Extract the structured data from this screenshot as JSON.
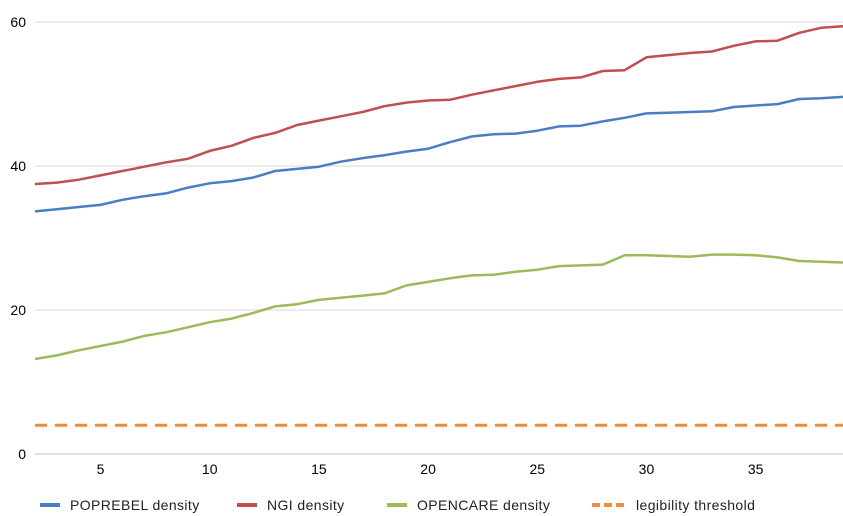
{
  "chart_data": {
    "type": "line",
    "x": [
      2,
      3,
      4,
      5,
      6,
      7,
      8,
      9,
      10,
      11,
      12,
      13,
      14,
      15,
      16,
      17,
      18,
      19,
      20,
      21,
      22,
      23,
      24,
      25,
      26,
      27,
      28,
      29,
      30,
      31,
      32,
      33,
      34,
      35,
      36,
      37,
      38,
      39
    ],
    "xticks": [
      "5",
      "10",
      "15",
      "20",
      "25",
      "30",
      "35"
    ],
    "xtick_values": [
      5,
      10,
      15,
      20,
      25,
      30,
      35
    ],
    "yticks": [
      "0",
      "20",
      "40",
      "60"
    ],
    "ytick_values": [
      0,
      20,
      40,
      60
    ],
    "xlim": [
      2,
      39
    ],
    "ylim": [
      0,
      60
    ],
    "title": "",
    "xlabel": "",
    "ylabel": "",
    "grid": "horizontal",
    "legend_position": "bottom",
    "series": [
      {
        "name": "POPREBEL density",
        "color": "#4a7ec4",
        "style": "solid",
        "values": [
          33.7,
          34.0,
          34.3,
          34.6,
          35.3,
          35.8,
          36.2,
          37.0,
          37.6,
          37.9,
          38.4,
          39.3,
          39.6,
          39.9,
          40.6,
          41.1,
          41.5,
          42.0,
          42.4,
          43.3,
          44.1,
          44.4,
          44.5,
          44.9,
          45.5,
          45.6,
          46.2,
          46.7,
          47.3,
          47.4,
          47.5,
          47.6,
          48.2,
          48.4,
          48.6,
          49.3,
          49.4,
          49.6
        ]
      },
      {
        "name": "NGI density",
        "color": "#c0504d",
        "style": "solid",
        "values": [
          37.5,
          37.7,
          38.1,
          38.7,
          39.3,
          39.9,
          40.5,
          41.0,
          42.1,
          42.8,
          43.9,
          44.6,
          45.7,
          46.3,
          46.9,
          47.5,
          48.3,
          48.8,
          49.1,
          49.2,
          49.9,
          50.5,
          51.1,
          51.7,
          52.1,
          52.3,
          53.2,
          53.3,
          55.1,
          55.4,
          55.7,
          55.9,
          56.7,
          57.3,
          57.4,
          58.5,
          59.2,
          59.4
        ]
      },
      {
        "name": "OPENCARE density",
        "color": "#9bbb59",
        "style": "solid",
        "values": [
          13.2,
          13.7,
          14.4,
          15.0,
          15.6,
          16.4,
          16.9,
          17.6,
          18.3,
          18.8,
          19.6,
          20.5,
          20.8,
          21.4,
          21.7,
          22.0,
          22.3,
          23.4,
          23.9,
          24.4,
          24.8,
          24.9,
          25.3,
          25.6,
          26.1,
          26.2,
          26.3,
          27.6,
          27.6,
          27.5,
          27.4,
          27.7,
          27.7,
          27.6,
          27.3,
          26.8,
          26.7,
          26.6
        ]
      },
      {
        "name": "legibility threshold",
        "color": "#f08c38",
        "style": "dashed",
        "values": [
          4,
          4,
          4,
          4,
          4,
          4,
          4,
          4,
          4,
          4,
          4,
          4,
          4,
          4,
          4,
          4,
          4,
          4,
          4,
          4,
          4,
          4,
          4,
          4,
          4,
          4,
          4,
          4,
          4,
          4,
          4,
          4,
          4,
          4,
          4,
          4,
          4,
          4
        ]
      }
    ]
  },
  "colors": {
    "gridline": "#d9d9d9",
    "axis_line": "#bfbfbf"
  }
}
